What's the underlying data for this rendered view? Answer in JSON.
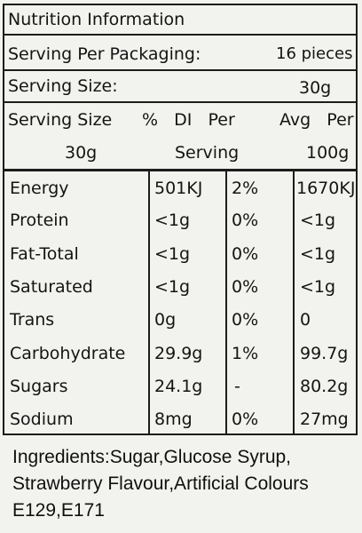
{
  "panel": {
    "title": "Nutrition Information",
    "serving_per_packaging_label": "Serving Per Packaging:",
    "serving_per_packaging_value": "16 pieces",
    "serving_size_label": "Serving Size:",
    "serving_size_value": "30g",
    "header": {
      "col1_line1": "Serving Size",
      "col1_line2": "30g",
      "col2_line1": "%   DI   Per",
      "col2_line2": "Serving",
      "col3_line1": "Avg   Per",
      "col3_line2": "100g"
    },
    "rows": [
      {
        "name": "Energy",
        "per_serving": "501KJ",
        "di": "2%",
        "per_100g": "1670KJ"
      },
      {
        "name": "Protein",
        "per_serving": "<1g",
        "di": "0%",
        "per_100g": "<1g"
      },
      {
        "name": "Fat-Total",
        "per_serving": "<1g",
        "di": "0%",
        "per_100g": "<1g"
      },
      {
        "name": "Saturated",
        "per_serving": "<1g",
        "di": "0%",
        "per_100g": "<1g"
      },
      {
        "name": "Trans",
        "per_serving": "0g",
        "di": "0%",
        "per_100g": "0"
      },
      {
        "name": "Carbohydrate",
        "per_serving": "29.9g",
        "di": "1%",
        "per_100g": "99.7g"
      },
      {
        "name": "Sugars",
        "per_serving": "24.1g",
        "di": "-",
        "per_100g": "80.2g"
      },
      {
        "name": "Sodium",
        "per_serving": "8mg",
        "di": "0%",
        "per_100g": "27mg"
      }
    ]
  },
  "ingredients": {
    "line1": "Ingredients:Sugar,Glucose Syrup,",
    "line2": "Strawberry Flavour,Artificial Colours",
    "line3": "E129,E171"
  }
}
